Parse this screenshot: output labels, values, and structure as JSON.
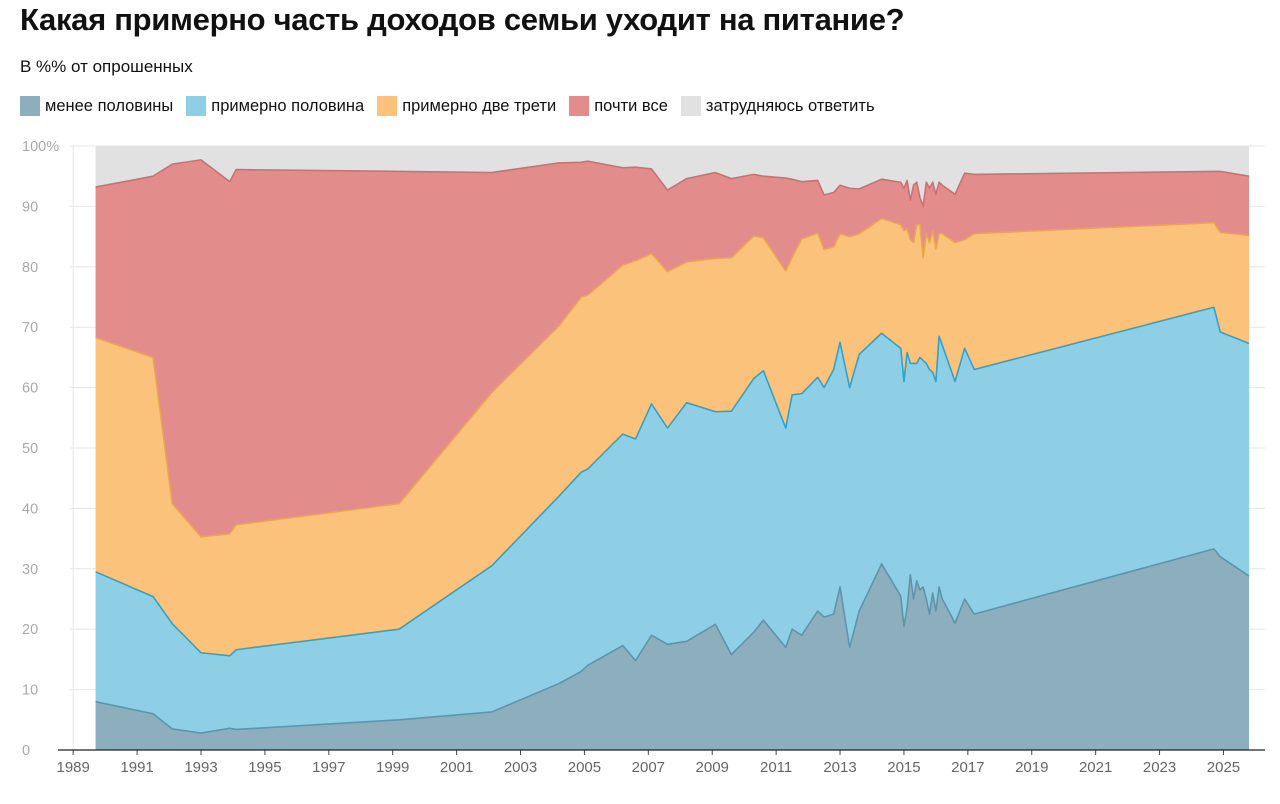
{
  "chart_data": {
    "type": "area",
    "stacked": true,
    "title": "Какая примерно часть доходов семьи уходит на питание?",
    "subtitle": "В %% от опрошенных",
    "ylim": [
      0,
      100
    ],
    "y_ticks": [
      "0",
      "10",
      "20",
      "30",
      "40",
      "50",
      "60",
      "70",
      "80",
      "90",
      "100%"
    ],
    "x_ticks": [
      "1989",
      "1991",
      "1993",
      "1995",
      "1997",
      "1999",
      "2001",
      "2003",
      "2005",
      "2007",
      "2009",
      "2011",
      "2013",
      "2015",
      "2017",
      "2019",
      "2021",
      "2023",
      "2025"
    ],
    "xlim": [
      1988.9,
      2026.3
    ],
    "grid": true,
    "legend_position": "top",
    "x": [
      1989.7,
      1991.5,
      1992.1,
      1993.0,
      1993.9,
      1994.1,
      1999.2,
      2002.1,
      2004.2,
      2004.9,
      2005.1,
      2006.2,
      2006.6,
      2007.1,
      2007.6,
      2008.2,
      2009.1,
      2009.6,
      2010.3,
      2010.6,
      2011.3,
      2011.5,
      2011.8,
      2012.3,
      2012.5,
      2012.8,
      2013.0,
      2013.3,
      2013.6,
      2014.3,
      2014.9,
      2015.0,
      2015.1,
      2015.2,
      2015.3,
      2015.4,
      2015.5,
      2015.6,
      2015.7,
      2015.8,
      2015.9,
      2016.0,
      2016.1,
      2016.2,
      2016.6,
      2016.9,
      2017.2,
      2024.7,
      2024.9,
      2025.8
    ],
    "series": [
      {
        "name": "менее половины",
        "color": "#8caebd",
        "line": "#5f94ab",
        "values": [
          8.0,
          6.0,
          3.5,
          2.8,
          3.6,
          3.4,
          5.0,
          6.3,
          11.0,
          13.0,
          14.0,
          17.3,
          14.8,
          19.0,
          17.5,
          18.0,
          20.8,
          15.8,
          19.5,
          21.5,
          17.0,
          20.0,
          19.0,
          23.0,
          22.0,
          22.5,
          27.0,
          17.0,
          23.0,
          30.8,
          25.5,
          20.5,
          23.5,
          29.0,
          25.0,
          28.0,
          26.5,
          27.0,
          25.0,
          22.5,
          26.0,
          23.0,
          27.0,
          25.0,
          21.0,
          25.0,
          22.5,
          33.3,
          32.0,
          28.8
        ]
      },
      {
        "name": "примерно половина",
        "color": "#8ecfe6",
        "line": "#2ea3d0",
        "values": [
          21.5,
          19.4,
          17.4,
          13.3,
          12.0,
          13.2,
          15.0,
          24.2,
          31.0,
          33.0,
          32.5,
          35.0,
          36.7,
          38.3,
          35.8,
          39.5,
          35.2,
          40.3,
          42.0,
          41.3,
          36.3,
          38.8,
          40.0,
          38.7,
          38.0,
          40.5,
          40.5,
          43.0,
          42.5,
          38.2,
          41.0,
          40.5,
          42.3,
          35.0,
          39.0,
          36.0,
          38.5,
          37.5,
          39.0,
          40.5,
          36.5,
          38.0,
          41.5,
          42.0,
          40.0,
          41.5,
          40.5,
          40.0,
          37.2,
          38.5
        ]
      },
      {
        "name": "примерно две трети",
        "color": "#fbc27b",
        "line": "#e8a650",
        "values": [
          38.8,
          39.6,
          19.9,
          19.2,
          20.2,
          20.7,
          20.8,
          28.7,
          28.2,
          29.0,
          28.8,
          28.0,
          29.5,
          24.9,
          25.9,
          23.3,
          25.4,
          25.4,
          23.6,
          22.0,
          26.0,
          22.8,
          25.6,
          23.9,
          22.9,
          20.3,
          18.0,
          25.0,
          20.0,
          19.0,
          20.5,
          25.0,
          20.5,
          20.5,
          20.0,
          23.0,
          22.0,
          17.0,
          21.5,
          21.0,
          23.5,
          22.0,
          17.0,
          18.5,
          23.0,
          18.0,
          22.5,
          14.0,
          16.5,
          17.9
        ]
      },
      {
        "name": "почти все",
        "color": "#e28c8c",
        "line": "#cf6f6f",
        "values": [
          24.9,
          30.0,
          56.2,
          62.4,
          58.3,
          58.8,
          55.0,
          36.4,
          27.0,
          22.3,
          22.2,
          16.1,
          15.5,
          14.0,
          13.5,
          13.8,
          14.2,
          13.1,
          10.2,
          10.2,
          15.4,
          12.9,
          9.5,
          8.7,
          9.0,
          9.0,
          8.0,
          8.0,
          7.4,
          6.5,
          7.0,
          7.0,
          8.0,
          6.5,
          9.5,
          7.0,
          4.5,
          8.5,
          8.5,
          9.0,
          8.0,
          9.0,
          8.5,
          8.0,
          8.0,
          11.0,
          9.8,
          8.5,
          10.1,
          9.8
        ]
      },
      {
        "name": "затрудняюсь ответить",
        "color": "#e1e1e1",
        "line": "#e1e1e1",
        "values": [
          6.8,
          5.0,
          3.0,
          2.3,
          5.9,
          3.9,
          4.2,
          4.4,
          2.8,
          2.7,
          2.5,
          3.6,
          3.5,
          3.8,
          7.3,
          5.4,
          4.4,
          5.4,
          4.7,
          5.0,
          5.3,
          5.5,
          5.9,
          5.7,
          8.1,
          7.7,
          6.5,
          7.0,
          7.1,
          5.5,
          6.0,
          7.0,
          5.7,
          9.0,
          6.5,
          6.0,
          8.5,
          10.0,
          6.0,
          7.0,
          6.0,
          8.0,
          6.0,
          6.5,
          8.0,
          4.5,
          4.7,
          4.2,
          4.2,
          5.0
        ]
      }
    ]
  }
}
